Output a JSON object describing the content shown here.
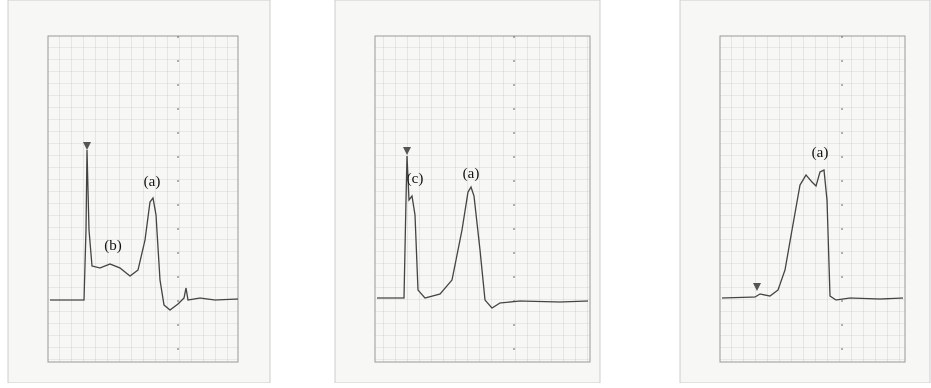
{
  "panels": [
    {
      "labels": [
        "(b)",
        "(a)"
      ]
    },
    {
      "labels": [
        "(c)",
        "(a)"
      ]
    },
    {
      "labels": [
        "(a)"
      ]
    }
  ]
}
